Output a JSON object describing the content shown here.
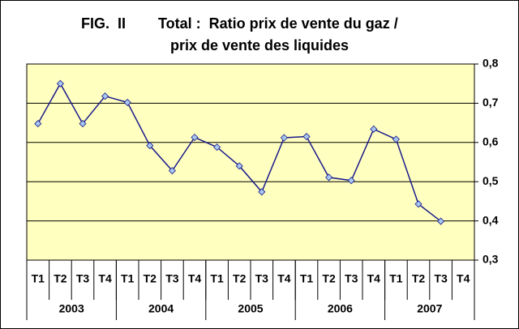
{
  "chart_data": {
    "type": "line",
    "fig_label": "FIG.  II",
    "title": [
      "Total :  Ratio prix de vente du gaz /",
      "prix de vente des liquides"
    ],
    "categories": [
      "T1",
      "T2",
      "T3",
      "T4",
      "T1",
      "T2",
      "T3",
      "T4",
      "T1",
      "T2",
      "T3",
      "T4",
      "T1",
      "T2",
      "T3",
      "T4",
      "T1",
      "T2",
      "T3",
      "T4"
    ],
    "years": [
      "2003",
      "2004",
      "2005",
      "2006",
      "2007"
    ],
    "series": [
      {
        "color": "#1a1a8c",
        "marker_color": "#a8c8f0",
        "values": [
          0.648,
          0.75,
          0.648,
          0.718,
          0.702,
          0.592,
          0.528,
          0.613,
          0.588,
          0.54,
          0.474,
          0.612,
          0.615,
          0.511,
          0.503,
          0.634,
          0.608,
          0.443,
          0.399,
          null
        ]
      }
    ],
    "ylim": [
      0.3,
      0.8
    ],
    "yticks": [
      {
        "value": 0.3,
        "label": "0,3"
      },
      {
        "value": 0.4,
        "label": "0,4"
      },
      {
        "value": 0.5,
        "label": "0,5"
      },
      {
        "value": 0.6,
        "label": "0,6"
      },
      {
        "value": 0.7,
        "label": "0,7"
      },
      {
        "value": 0.8,
        "label": "0,8"
      }
    ],
    "grid": true,
    "plot_background": "#ffffc0"
  }
}
